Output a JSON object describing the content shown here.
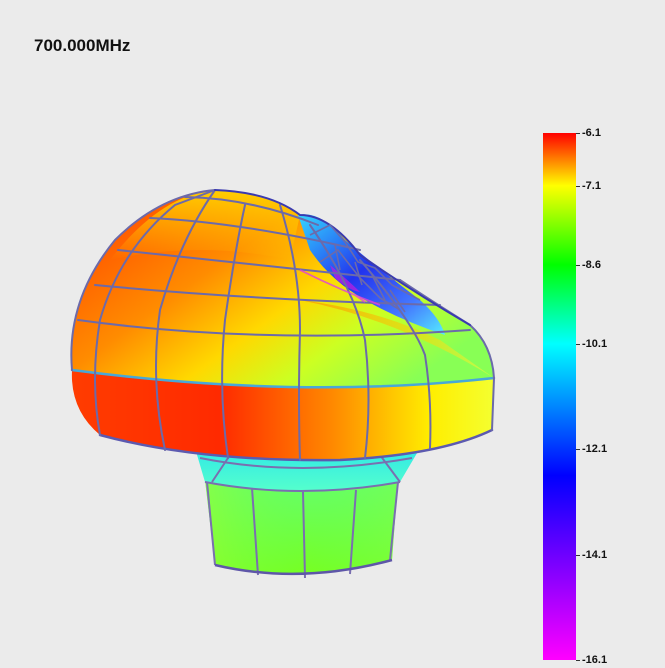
{
  "title": "700.000MHz",
  "colorbar": {
    "max": -6.1,
    "min": -16.1,
    "ticks": [
      "-6.1",
      "-7.1",
      "-8.6",
      "-10.1",
      "-12.1",
      "-14.1",
      "-16.1"
    ],
    "gradient_colors": [
      "#ff0000",
      "#ffff00",
      "#00ff00",
      "#00ffff",
      "#0000ff",
      "#ff00ff"
    ]
  },
  "pattern": {
    "mesh_color": "#6a6aa8",
    "edge_color": "#2a2a9a"
  }
}
